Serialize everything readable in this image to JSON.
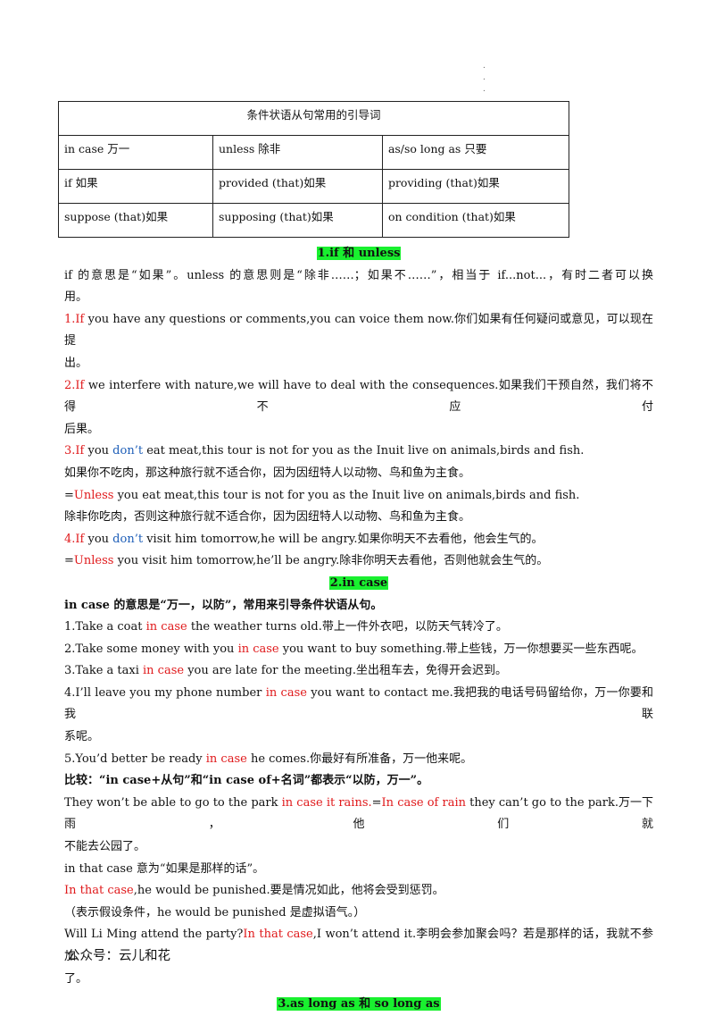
{
  "dots": [
    ".",
    ".",
    "."
  ],
  "table": {
    "title": "条件状语从句常用的引导词",
    "rows": [
      [
        "in case 万一",
        "unless 除非",
        "as/so long as 只要"
      ],
      [
        "if 如果",
        "provided (that)如果",
        "providing (that)如果"
      ],
      [
        "suppose (that)如果",
        "supposing (that)如果",
        "on condition (that)如果"
      ]
    ]
  },
  "sec1": {
    "heading": "1.if 和 unless",
    "intro_a": "if 的意思是“如果”。unless 的意思则是“除非……；如果不……”，相当于 if...not...，有时二者可以换",
    "intro_b": "用。",
    "ex1_kw": "1.If",
    "ex1_a": "  you have any questions or comments,you can voice them now.你们如果有任何疑问或意见，可以现在提",
    "ex1_b": "出。",
    "ex2_kw": "2.If",
    "ex2_a": "  we interfere with nature,we will have to deal with the consequences.如果我们干预自然，我们将不得不应付",
    "ex2_b": "后果。",
    "ex3_kw": "3.If",
    "ex3_mid": "  you  ",
    "ex3_neg": "don’t",
    "ex3_rest": "  eat meat,this tour is not for you as the Inuit live on animals,birds and fish.",
    "ex3_cn": "如果你不吃肉，那这种旅行就不适合你，因为因纽特人以动物、鸟和鱼为主食。",
    "ex3b_eq": "=",
    "ex3b_kw": "Unless",
    "ex3b_rest": "  you eat meat,this tour is not for you as the Inuit live on animals,birds and fish.",
    "ex3b_cn": "除非你吃肉，否则这种旅行就不适合你，因为因纽特人以动物、鸟和鱼为主食。",
    "ex4_kw": "4.If",
    "ex4_mid": "  you  ",
    "ex4_neg": "don’t",
    "ex4_rest": "  visit him tomorrow,he will be angry.如果你明天不去看他，他会生气的。",
    "ex4b_eq": "=",
    "ex4b_kw": "Unless",
    "ex4b_rest": "  you visit him tomorrow,he’ll be angry.除非你明天去看他，否则他就会生气的。"
  },
  "sec2": {
    "heading": "2.in case",
    "intro": "in case 的意思是“万一，以防”，常用来引导条件状语从句。",
    "ex1_pre": "1.Take a coat  ",
    "ex1_kw": "in case",
    "ex1_post": "  the weather turns old.带上一件外衣吧，以防天气转冷了。",
    "ex2_pre": "2.Take some money with you  ",
    "ex2_kw": "in case",
    "ex2_post": "  you want to buy something.带上些钱，万一你想要买一些东西呢。",
    "ex3_pre": "3.Take a taxi  ",
    "ex3_kw": "in case",
    "ex3_post": "  you are late for the meeting.坐出租车去，免得开会迟到。",
    "ex4_pre": "4.I’ll leave you my phone number  ",
    "ex4_kw": "in case",
    "ex4_post": "  you want to contact me.我把我的电话号码留给你，万一你要和我联",
    "ex4_b": "系呢。",
    "ex5_pre": "5.You’d better be ready  ",
    "ex5_kw": "in case",
    "ex5_post": "  he comes.你最好有所准备，万一他来呢。",
    "compare": "比较：“in case+从句”和“in case of+名词”都表示“以防，万一”。",
    "c_pre": "They won’t be able to go to the park  ",
    "c_kw1": "in case it rains.",
    "c_eq": "=",
    "c_kw2": "In case of rain",
    "c_post": "  they can’t go to the park.万一下雨，他们就",
    "c_b": "不能去公园了。",
    "that_case": "in that case 意为“如果是那样的话”。",
    "tc_kw": "In that case",
    "tc_post": ",he would be punished.要是情况如此，他将会受到惩罚。",
    "note": "（表示假设条件，he would be punished 是虚拟语气。）",
    "q_pre": "Will Li Ming attend the party?",
    "q_kw": "In that case",
    "q_post": ",I won’t attend it.李明会参加聚会吗？若是那样的话，我就不参加",
    "q_b": "了。"
  },
  "sec3": {
    "heading": "3.as long as 和 so long as"
  },
  "footer": "公众号：云儿和花"
}
